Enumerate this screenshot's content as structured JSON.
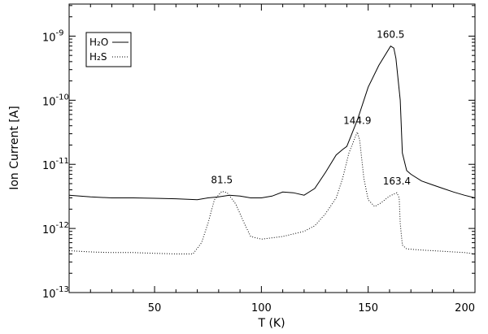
{
  "chart_data": {
    "type": "line",
    "title": "",
    "xlabel": "T (K)",
    "ylabel": "Ion Current [A]",
    "xlim": [
      10,
      200
    ],
    "ylim_log10": [
      -13,
      -8.5
    ],
    "yscale": "log",
    "grid": false,
    "legend_placement": "top-left",
    "x_ticks": [
      {
        "value": 50,
        "label": "50"
      },
      {
        "value": 100,
        "label": "100"
      },
      {
        "value": 150,
        "label": "150"
      },
      {
        "value": 200,
        "label": "200"
      }
    ],
    "y_ticks": [
      {
        "value": -9,
        "label": "10",
        "exp": "-9"
      },
      {
        "value": -10,
        "label": "10",
        "exp": "-10"
      },
      {
        "value": -11,
        "label": "10",
        "exp": "-11"
      },
      {
        "value": -12,
        "label": "10",
        "exp": "-12"
      },
      {
        "value": -13,
        "label": "10",
        "exp": "-13"
      }
    ],
    "series": [
      {
        "name": "H2O",
        "legend_label": "H₂O",
        "style": "solid",
        "x": [
          10,
          20,
          30,
          40,
          50,
          60,
          70,
          75,
          80,
          85,
          90,
          95,
          100,
          105,
          110,
          115,
          120,
          125,
          130,
          135,
          138,
          140,
          142,
          145,
          148,
          150,
          155,
          160.5,
          162,
          163,
          165,
          166,
          168,
          170,
          175,
          180,
          185,
          190,
          195,
          200
        ],
        "y": [
          3.3e-12,
          3.1e-12,
          3e-12,
          3e-12,
          2.95e-12,
          2.9e-12,
          2.8e-12,
          3e-12,
          3.1e-12,
          3.3e-12,
          3.2e-12,
          3e-12,
          3e-12,
          3.2e-12,
          3.7e-12,
          3.6e-12,
          3.3e-12,
          4.2e-12,
          7.5e-12,
          1.4e-11,
          1.7e-11,
          1.9e-11,
          2.8e-11,
          5e-11,
          1e-10,
          1.6e-10,
          3.5e-10,
          7e-10,
          6.5e-10,
          4.5e-10,
          1e-10,
          1.5e-11,
          8e-12,
          7e-12,
          5.5e-12,
          4.8e-12,
          4.2e-12,
          3.7e-12,
          3.3e-12,
          3e-12
        ]
      },
      {
        "name": "H2S",
        "legend_label": "H₂S",
        "style": "dotted",
        "x": [
          10,
          20,
          30,
          40,
          50,
          60,
          68,
          72,
          75,
          78,
          81.5,
          84,
          88,
          92,
          95,
          100,
          110,
          120,
          125,
          130,
          135,
          138,
          141,
          144.9,
          146,
          148,
          150,
          153,
          156,
          160,
          163.4,
          164.5,
          165,
          166,
          168,
          175,
          185,
          195,
          200
        ],
        "y": [
          4.5e-13,
          4.3e-13,
          4.2e-13,
          4.2e-13,
          4.1e-13,
          4e-13,
          4e-13,
          6e-13,
          1.2e-12,
          2.8e-12,
          3.8e-12,
          3.6e-12,
          2.4e-12,
          1.2e-12,
          7.5e-13,
          6.8e-13,
          7.5e-13,
          9e-13,
          1.1e-12,
          1.7e-12,
          3e-12,
          6e-12,
          1.5e-11,
          3.2e-11,
          2.4e-11,
          6e-12,
          2.8e-12,
          2.2e-12,
          2.5e-12,
          3.2e-12,
          3.6e-12,
          3e-12,
          1.2e-12,
          5.5e-13,
          4.8e-13,
          4.6e-13,
          4.4e-13,
          4.2e-13,
          4e-13
        ]
      }
    ],
    "annotations": [
      {
        "text": "81.5",
        "x": 81.5,
        "y": 3.8e-12
      },
      {
        "text": "144.9",
        "x": 144.9,
        "y": 3.2e-11
      },
      {
        "text": "160.5",
        "x": 160.5,
        "y": 7e-10
      },
      {
        "text": "163.4",
        "x": 163.4,
        "y": 3.6e-12
      }
    ]
  }
}
